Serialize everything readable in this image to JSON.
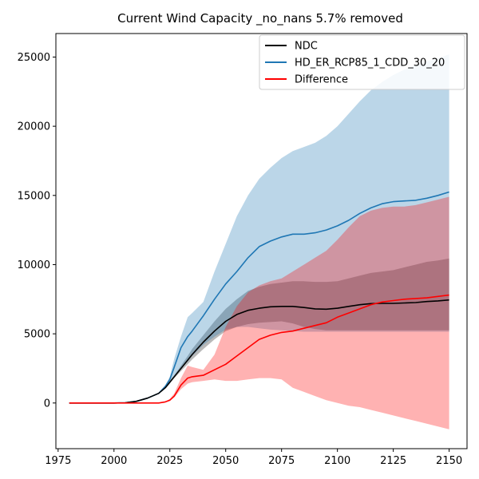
{
  "chart_data": {
    "type": "line",
    "title": "Current Wind Capacity _no_nans 5.7% removed",
    "xlabel": "",
    "ylabel": "",
    "xlim": [
      1974,
      2158
    ],
    "ylim": [
      -3300,
      26700
    ],
    "x_ticks": [
      1975,
      2000,
      2025,
      2050,
      2075,
      2100,
      2125,
      2150
    ],
    "y_ticks": [
      0,
      5000,
      10000,
      15000,
      20000,
      25000
    ],
    "grid": false,
    "legend_position": "top-right",
    "x": [
      1980,
      2000,
      2005,
      2010,
      2015,
      2020,
      2023,
      2025,
      2027,
      2030,
      2033,
      2035,
      2040,
      2045,
      2050,
      2055,
      2060,
      2065,
      2070,
      2075,
      2080,
      2085,
      2090,
      2095,
      2100,
      2105,
      2110,
      2115,
      2120,
      2125,
      2130,
      2135,
      2140,
      2145,
      2150
    ],
    "series": [
      {
        "name": "NDC",
        "color": "#000000",
        "values": [
          0,
          0,
          20,
          120,
          350,
          700,
          1100,
          1500,
          1900,
          2500,
          3100,
          3500,
          4400,
          5200,
          5900,
          6400,
          6700,
          6850,
          6950,
          6980,
          6980,
          6900,
          6800,
          6780,
          6850,
          6980,
          7100,
          7180,
          7200,
          7200,
          7230,
          7260,
          7330,
          7380,
          7450
        ],
        "band_lower": [
          0,
          0,
          20,
          110,
          330,
          650,
          1050,
          1400,
          1800,
          2300,
          2800,
          3150,
          3900,
          4600,
          5200,
          5500,
          5700,
          5800,
          5850,
          5900,
          5750,
          5500,
          5350,
          5250,
          5250,
          5250,
          5250,
          5250,
          5250,
          5250,
          5250,
          5250,
          5250,
          5250,
          5250
        ],
        "band_upper": [
          0,
          0,
          20,
          130,
          380,
          750,
          1150,
          1600,
          2000,
          2700,
          3400,
          3900,
          4900,
          5900,
          6800,
          7500,
          8100,
          8400,
          8600,
          8700,
          8800,
          8800,
          8750,
          8750,
          8800,
          9000,
          9200,
          9400,
          9500,
          9600,
          9800,
          10000,
          10200,
          10300,
          10450
        ],
        "band_color": "#808080"
      },
      {
        "name": "HD_ER_RCP85_1_CDD_30_20",
        "color": "#1f77b4",
        "values": [
          0,
          0,
          20,
          120,
          350,
          700,
          1200,
          1700,
          2600,
          4000,
          4800,
          5200,
          6300,
          7500,
          8600,
          9500,
          10500,
          11300,
          11700,
          12000,
          12200,
          12200,
          12300,
          12500,
          12800,
          13200,
          13700,
          14100,
          14400,
          14550,
          14600,
          14650,
          14800,
          15000,
          15250
        ],
        "band_lower": [
          0,
          0,
          20,
          110,
          330,
          650,
          1050,
          1400,
          1900,
          2500,
          3000,
          3400,
          4200,
          4800,
          5300,
          5500,
          5500,
          5400,
          5300,
          5250,
          5200,
          5150,
          5150,
          5150,
          5150,
          5150,
          5150,
          5150,
          5150,
          5150,
          5150,
          5150,
          5150,
          5150,
          5150
        ],
        "band_upper": [
          0,
          0,
          20,
          130,
          380,
          750,
          1300,
          1900,
          3200,
          4800,
          6200,
          6500,
          7300,
          9500,
          11500,
          13500,
          15000,
          16200,
          17000,
          17700,
          18200,
          18500,
          18800,
          19300,
          20000,
          20900,
          21800,
          22600,
          23200,
          23700,
          24100,
          24400,
          24700,
          24900,
          25200
        ],
        "band_color": "#1f77b4"
      },
      {
        "name": "Difference",
        "color": "#ff0000",
        "values": [
          0,
          0,
          0,
          0,
          0,
          0,
          80,
          200,
          500,
          1300,
          1800,
          1900,
          2000,
          2400,
          2800,
          3400,
          4000,
          4600,
          4900,
          5100,
          5200,
          5400,
          5600,
          5800,
          6200,
          6500,
          6800,
          7100,
          7300,
          7400,
          7500,
          7550,
          7600,
          7700,
          7800
        ],
        "band_lower": [
          0,
          0,
          0,
          0,
          0,
          0,
          50,
          150,
          400,
          1000,
          1400,
          1500,
          1600,
          1700,
          1600,
          1600,
          1700,
          1800,
          1800,
          1700,
          1100,
          800,
          500,
          200,
          0,
          -200,
          -300,
          -500,
          -700,
          -900,
          -1100,
          -1300,
          -1500,
          -1700,
          -1900
        ],
        "band_upper": [
          0,
          0,
          0,
          0,
          0,
          0,
          100,
          300,
          700,
          1800,
          2700,
          2600,
          2400,
          3500,
          5500,
          7000,
          8000,
          8500,
          8800,
          9000,
          9500,
          10000,
          10500,
          11000,
          11800,
          12700,
          13500,
          13900,
          14100,
          14200,
          14200,
          14300,
          14500,
          14700,
          14900
        ],
        "band_color": "#ff0000"
      }
    ]
  }
}
